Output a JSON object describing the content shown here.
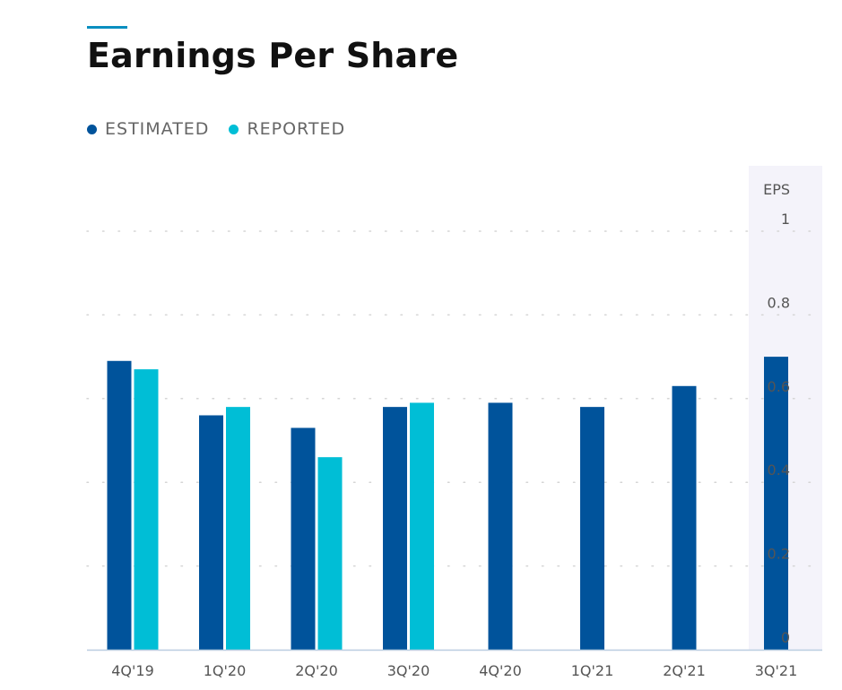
{
  "title": "Earnings Per Share",
  "colors": {
    "accent": "#0a8fc0",
    "estimated": "#00539b",
    "reported": "#00bed6",
    "highlight": "#f4f3fa",
    "grid": "#d5d5d5",
    "axis": "#b9cde0"
  },
  "legend": [
    {
      "key": "estimated",
      "label": "ESTIMATED"
    },
    {
      "key": "reported",
      "label": "REPORTED"
    }
  ],
  "chart_data": {
    "type": "bar",
    "title": "Earnings Per Share",
    "ylabel": "EPS",
    "xlabel": "",
    "ylim": [
      0,
      1
    ],
    "yticks": [
      "0",
      "0.2",
      "0.4",
      "0.6",
      "0.8",
      "1"
    ],
    "yaxis_position": "right",
    "grid": true,
    "legend_position": "top-left",
    "categories": [
      "4Q'19",
      "1Q'20",
      "2Q'20",
      "3Q'20",
      "4Q'20",
      "1Q'21",
      "2Q'21",
      "3Q'21"
    ],
    "highlighted_category": "3Q'21",
    "series": [
      {
        "name": "ESTIMATED",
        "values": [
          0.69,
          0.56,
          0.53,
          0.58,
          0.59,
          0.58,
          0.63,
          0.7
        ]
      },
      {
        "name": "REPORTED",
        "values": [
          0.67,
          0.58,
          0.46,
          0.59,
          null,
          null,
          null,
          null
        ]
      }
    ]
  }
}
